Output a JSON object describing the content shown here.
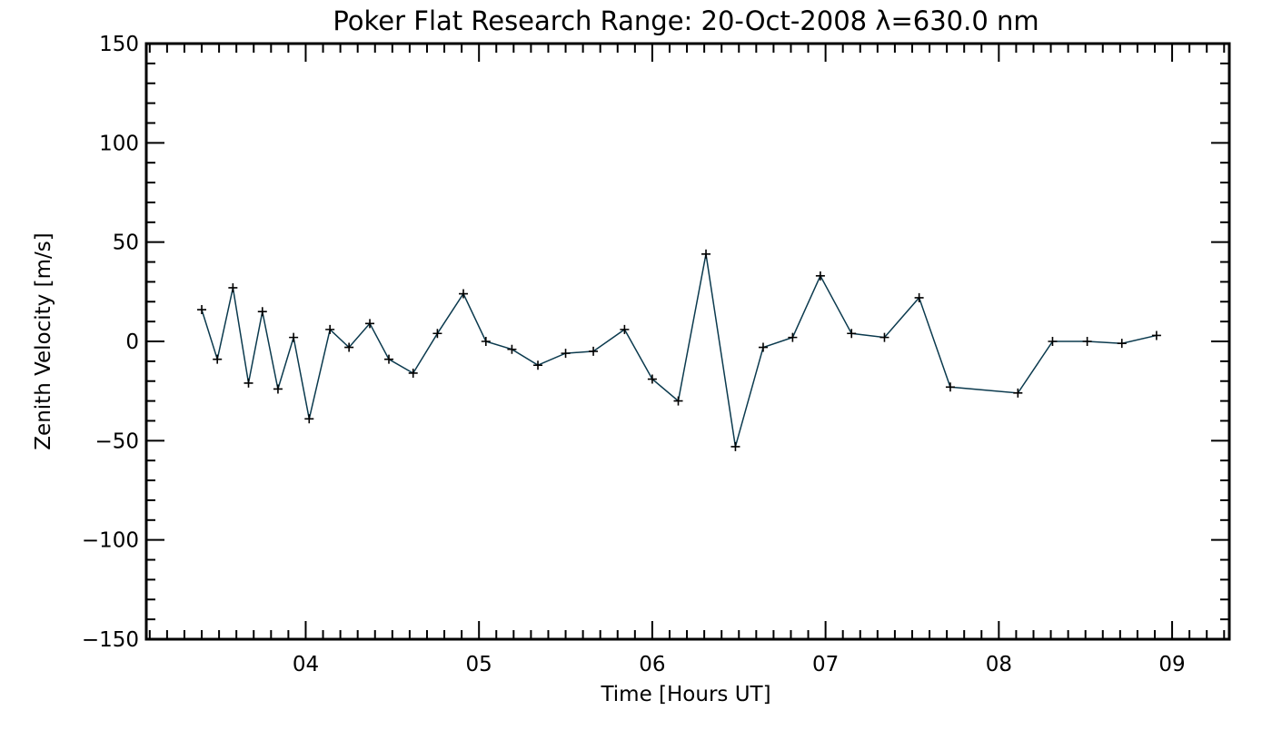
{
  "chart_data": {
    "type": "line",
    "title": "Poker Flat Research Range: 20-Oct-2008 λ=630.0 nm",
    "xlabel": "Time [Hours UT]",
    "ylabel": "Zenith Velocity [m/s]",
    "xlim": [
      3.08,
      9.33
    ],
    "ylim": [
      -150,
      150
    ],
    "x_ticks": [
      {
        "value": 4,
        "label": "04"
      },
      {
        "value": 5,
        "label": "05"
      },
      {
        "value": 6,
        "label": "06"
      },
      {
        "value": 7,
        "label": "07"
      },
      {
        "value": 8,
        "label": "08"
      },
      {
        "value": 9,
        "label": "09"
      }
    ],
    "y_ticks": [
      {
        "value": 150,
        "label": "150"
      },
      {
        "value": 100,
        "label": "100"
      },
      {
        "value": 50,
        "label": "50"
      },
      {
        "value": 0,
        "label": "0"
      },
      {
        "value": -50,
        "label": "−50"
      },
      {
        "value": -100,
        "label": "−100"
      },
      {
        "value": -150,
        "label": "−150"
      }
    ],
    "grid": false,
    "line_color": "#0b3a4e",
    "marker_color": "#000000",
    "series": [
      {
        "x": [
          3.4,
          3.49,
          3.58,
          3.67,
          3.75,
          3.84,
          3.93,
          4.02,
          4.14,
          4.25,
          4.37,
          4.48,
          4.62,
          4.76,
          4.91,
          5.04,
          5.19,
          5.34,
          5.5,
          5.66,
          5.84,
          6.0,
          6.15,
          6.31,
          6.48,
          6.64,
          6.81,
          6.97,
          7.15,
          7.34,
          7.54,
          7.72,
          8.11,
          8.31,
          8.51,
          8.71,
          8.91
        ],
        "values": [
          16,
          -9,
          27,
          -21,
          15,
          -24,
          2,
          -39,
          6,
          -3,
          9,
          -9,
          -16,
          4,
          24,
          0,
          -4,
          -12,
          -6,
          -5,
          6,
          -19,
          -30,
          44,
          -53,
          -3,
          2,
          33,
          4,
          2,
          22,
          -23,
          -26,
          0,
          0,
          -1,
          3
        ]
      }
    ]
  }
}
